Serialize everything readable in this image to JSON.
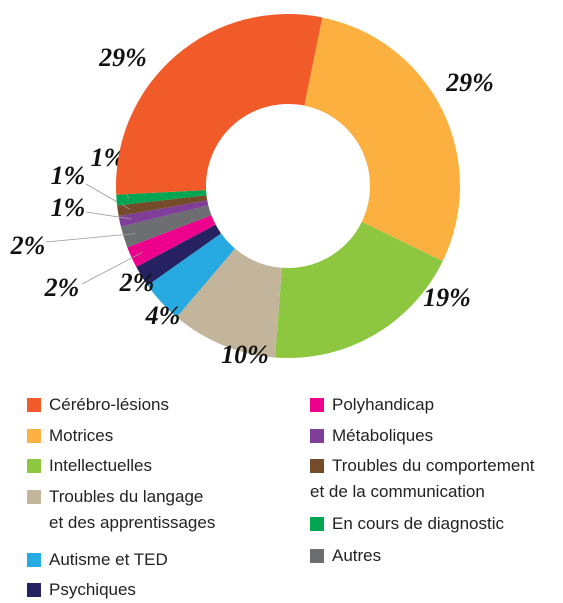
{
  "chart_data": {
    "type": "donut",
    "categories": [
      "Cérébro-lésions",
      "Motrices",
      "Intellectuelles",
      "Troubles du langage\net des apprentissages",
      "Autisme et TED",
      "Psychiques",
      "Polyhandicap",
      "Métaboliques",
      "Troubles du comportement\net de la communication",
      "En cours de diagnostic",
      "Autres"
    ],
    "values": [
      29,
      29,
      19,
      10,
      4,
      2,
      2,
      1,
      1,
      1,
      2
    ],
    "value_labels": [
      "29%",
      "29%",
      "19%",
      "10%",
      "4%",
      "2%",
      "2%",
      "1%",
      "1%",
      "1%",
      "2%"
    ],
    "colors": [
      "#f15a29",
      "#fbb040",
      "#8dc63f",
      "#c2b59b",
      "#27aae1",
      "#262262",
      "#ec008c",
      "#7f3f98",
      "#754c29",
      "#00a651",
      "#6d6e71"
    ]
  }
}
